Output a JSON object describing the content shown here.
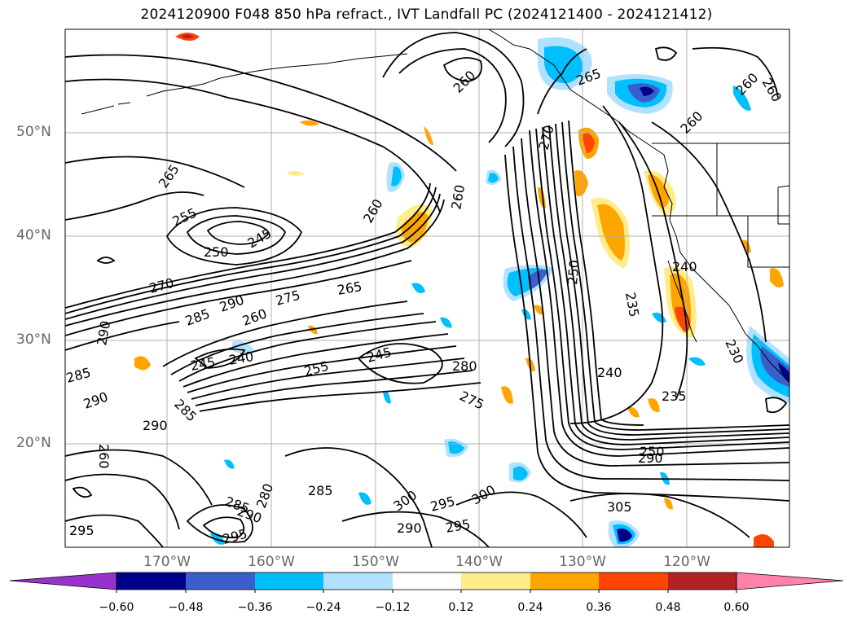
{
  "title": "2024120900 F048 850 hPa refract., IVT Landfall PC (2024121400 - 2024121412)",
  "lat_labels": [
    "50°N",
    "40°N",
    "30°N",
    "20°N"
  ],
  "lon_labels": [
    "170°W",
    "160°W",
    "150°W",
    "140°W",
    "130°W",
    "120°W"
  ],
  "colorbar": {
    "ticks": [
      "−0.60",
      "−0.48",
      "−0.36",
      "−0.24",
      "−0.12",
      "0.12",
      "0.24",
      "0.36",
      "0.48",
      "0.60"
    ],
    "colors": [
      "#9932cc",
      "#00008b",
      "#3a5fcd",
      "#00bfff",
      "#b0e2ff",
      "#ffffff",
      "#ffec8b",
      "#ffa500",
      "#ff4500",
      "#b22222",
      "#ff82ab"
    ]
  },
  "contour_labels": [
    "265",
    "255",
    "250",
    "245",
    "260",
    "260",
    "260",
    "265",
    "260",
    "260",
    "260",
    "270",
    "250",
    "235",
    "240",
    "230",
    "240",
    "235",
    "270",
    "290",
    "275",
    "265",
    "285",
    "260",
    "290",
    "245",
    "240",
    "255",
    "245",
    "280",
    "275",
    "285",
    "290",
    "285",
    "290",
    "260",
    "250",
    "290",
    "285",
    "280",
    "290",
    "295",
    "285",
    "300",
    "295",
    "300",
    "305",
    "295",
    "290"
  ],
  "colors": {
    "contour": "#000000",
    "grid": "#b0b0b0",
    "coast": "#000000"
  }
}
